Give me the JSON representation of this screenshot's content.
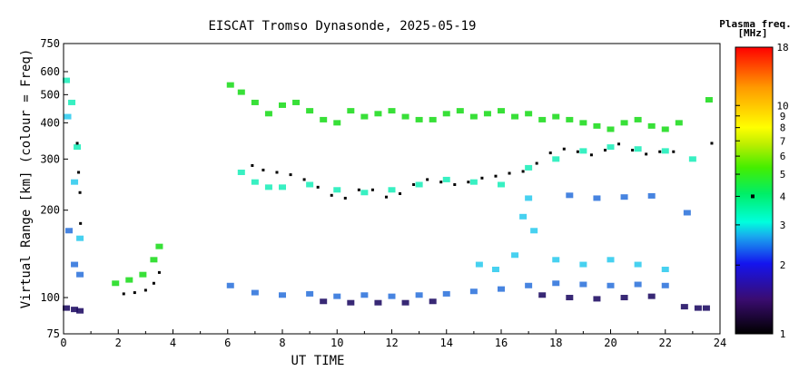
{
  "chart_data": {
    "type": "scatter",
    "title": "EISCAT Tromso Dynasonde, 2025-05-19",
    "xlabel": "UT TIME",
    "ylabel": "Virtual Range [km] (colour = Freq)",
    "xlim": [
      0,
      24
    ],
    "ylim": [
      75,
      750
    ],
    "yscale": "log",
    "x_ticks": [
      0,
      2,
      4,
      6,
      8,
      10,
      12,
      14,
      16,
      18,
      20,
      22,
      24
    ],
    "y_ticks": [
      75,
      100,
      200,
      300,
      400,
      500,
      600,
      750
    ],
    "grid": false,
    "colorbar": {
      "title": "Plasma freq.",
      "units": "[MHz]",
      "range": [
        1,
        18
      ],
      "scale": "log",
      "ticks": [
        1,
        2,
        3,
        4,
        5,
        6,
        7,
        8,
        9,
        10,
        18
      ],
      "marker_value": 4
    },
    "series": [
      {
        "kind": "layer",
        "color": "#22dd22",
        "points": [
          [
            6.1,
            540
          ],
          [
            6.5,
            510
          ],
          [
            7.0,
            470
          ],
          [
            7.5,
            430
          ],
          [
            8.0,
            460
          ],
          [
            8.5,
            470
          ],
          [
            9.0,
            440
          ],
          [
            9.5,
            410
          ],
          [
            10.0,
            400
          ],
          [
            10.5,
            440
          ],
          [
            11.0,
            420
          ],
          [
            11.5,
            430
          ],
          [
            12.0,
            440
          ],
          [
            12.5,
            420
          ],
          [
            13.0,
            410
          ],
          [
            13.5,
            410
          ],
          [
            14.0,
            430
          ],
          [
            14.5,
            440
          ],
          [
            15.0,
            420
          ],
          [
            15.5,
            430
          ],
          [
            16.0,
            440
          ],
          [
            16.5,
            420
          ],
          [
            17.0,
            430
          ],
          [
            17.5,
            410
          ],
          [
            18.0,
            420
          ],
          [
            18.5,
            410
          ],
          [
            19.0,
            400
          ],
          [
            19.5,
            390
          ],
          [
            20.0,
            380
          ],
          [
            20.5,
            400
          ],
          [
            21.0,
            410
          ],
          [
            21.5,
            390
          ],
          [
            22.0,
            380
          ],
          [
            22.5,
            400
          ],
          [
            23.6,
            480
          ],
          [
            1.9,
            112
          ],
          [
            2.4,
            115
          ],
          [
            2.9,
            120
          ],
          [
            3.3,
            135
          ],
          [
            3.5,
            150
          ]
        ]
      },
      {
        "kind": "layer",
        "color": "#22eebb",
        "points": [
          [
            0.1,
            560
          ],
          [
            0.3,
            470
          ],
          [
            0.5,
            330
          ],
          [
            6.5,
            270
          ],
          [
            7.0,
            250
          ],
          [
            7.5,
            240
          ],
          [
            8.0,
            240
          ],
          [
            9.0,
            245
          ],
          [
            10.0,
            235
          ],
          [
            11.0,
            230
          ],
          [
            12.0,
            235
          ],
          [
            13.0,
            245
          ],
          [
            14.0,
            255
          ],
          [
            15.0,
            250
          ],
          [
            16.0,
            245
          ],
          [
            17.0,
            280
          ],
          [
            18.0,
            300
          ],
          [
            19.0,
            320
          ],
          [
            20.0,
            330
          ],
          [
            21.0,
            325
          ],
          [
            22.0,
            320
          ],
          [
            23.0,
            300
          ]
        ]
      },
      {
        "kind": "layer",
        "color": "#33ccee",
        "points": [
          [
            0.15,
            420
          ],
          [
            0.4,
            250
          ],
          [
            0.6,
            160
          ],
          [
            15.2,
            130
          ],
          [
            15.8,
            125
          ],
          [
            16.5,
            140
          ],
          [
            17.2,
            170
          ],
          [
            18.0,
            135
          ],
          [
            19.0,
            130
          ],
          [
            20.0,
            135
          ],
          [
            21.0,
            130
          ],
          [
            22.0,
            125
          ],
          [
            16.8,
            190
          ],
          [
            17.0,
            220
          ]
        ]
      },
      {
        "kind": "layer",
        "color": "#3377dd",
        "points": [
          [
            0.2,
            170
          ],
          [
            0.4,
            130
          ],
          [
            0.6,
            120
          ],
          [
            6.1,
            110
          ],
          [
            7.0,
            104
          ],
          [
            8.0,
            102
          ],
          [
            9.0,
            103
          ],
          [
            10.0,
            101
          ],
          [
            11.0,
            102
          ],
          [
            12.0,
            101
          ],
          [
            13.0,
            102
          ],
          [
            14.0,
            103
          ],
          [
            15.0,
            105
          ],
          [
            16.0,
            107
          ],
          [
            17.0,
            110
          ],
          [
            18.0,
            112
          ],
          [
            19.0,
            111
          ],
          [
            20.0,
            110
          ],
          [
            21.0,
            111
          ],
          [
            22.0,
            110
          ],
          [
            18.5,
            225
          ],
          [
            19.5,
            220
          ],
          [
            20.5,
            222
          ],
          [
            21.5,
            224
          ],
          [
            22.8,
            196
          ]
        ]
      },
      {
        "kind": "layer",
        "color": "#221166",
        "points": [
          [
            0.1,
            92
          ],
          [
            0.4,
            91
          ],
          [
            0.6,
            90
          ],
          [
            9.5,
            97
          ],
          [
            10.5,
            96
          ],
          [
            11.5,
            96
          ],
          [
            12.5,
            96
          ],
          [
            13.5,
            97
          ],
          [
            17.5,
            102
          ],
          [
            18.5,
            100
          ],
          [
            19.5,
            99
          ],
          [
            20.5,
            100
          ],
          [
            21.5,
            101
          ],
          [
            22.7,
            93
          ],
          [
            23.2,
            92
          ],
          [
            23.5,
            92
          ]
        ]
      },
      {
        "kind": "marker",
        "color": "#000000",
        "points": [
          [
            0.5,
            340
          ],
          [
            0.55,
            270
          ],
          [
            0.6,
            230
          ],
          [
            0.62,
            180
          ],
          [
            2.2,
            103
          ],
          [
            2.6,
            104
          ],
          [
            3.0,
            106
          ],
          [
            3.3,
            112
          ],
          [
            3.5,
            122
          ],
          [
            6.9,
            285
          ],
          [
            7.3,
            275
          ],
          [
            7.8,
            270
          ],
          [
            8.3,
            265
          ],
          [
            8.8,
            255
          ],
          [
            9.3,
            240
          ],
          [
            9.8,
            225
          ],
          [
            10.3,
            220
          ],
          [
            10.8,
            235
          ],
          [
            11.3,
            235
          ],
          [
            11.8,
            222
          ],
          [
            12.3,
            228
          ],
          [
            12.8,
            245
          ],
          [
            13.3,
            255
          ],
          [
            13.8,
            250
          ],
          [
            14.3,
            245
          ],
          [
            14.8,
            250
          ],
          [
            15.3,
            258
          ],
          [
            15.8,
            262
          ],
          [
            16.3,
            268
          ],
          [
            16.8,
            272
          ],
          [
            17.3,
            290
          ],
          [
            17.8,
            315
          ],
          [
            18.3,
            325
          ],
          [
            18.8,
            318
          ],
          [
            19.3,
            310
          ],
          [
            19.8,
            322
          ],
          [
            20.3,
            338
          ],
          [
            20.8,
            322
          ],
          [
            21.3,
            312
          ],
          [
            21.8,
            318
          ],
          [
            22.3,
            318
          ],
          [
            23.7,
            340
          ]
        ]
      }
    ]
  }
}
